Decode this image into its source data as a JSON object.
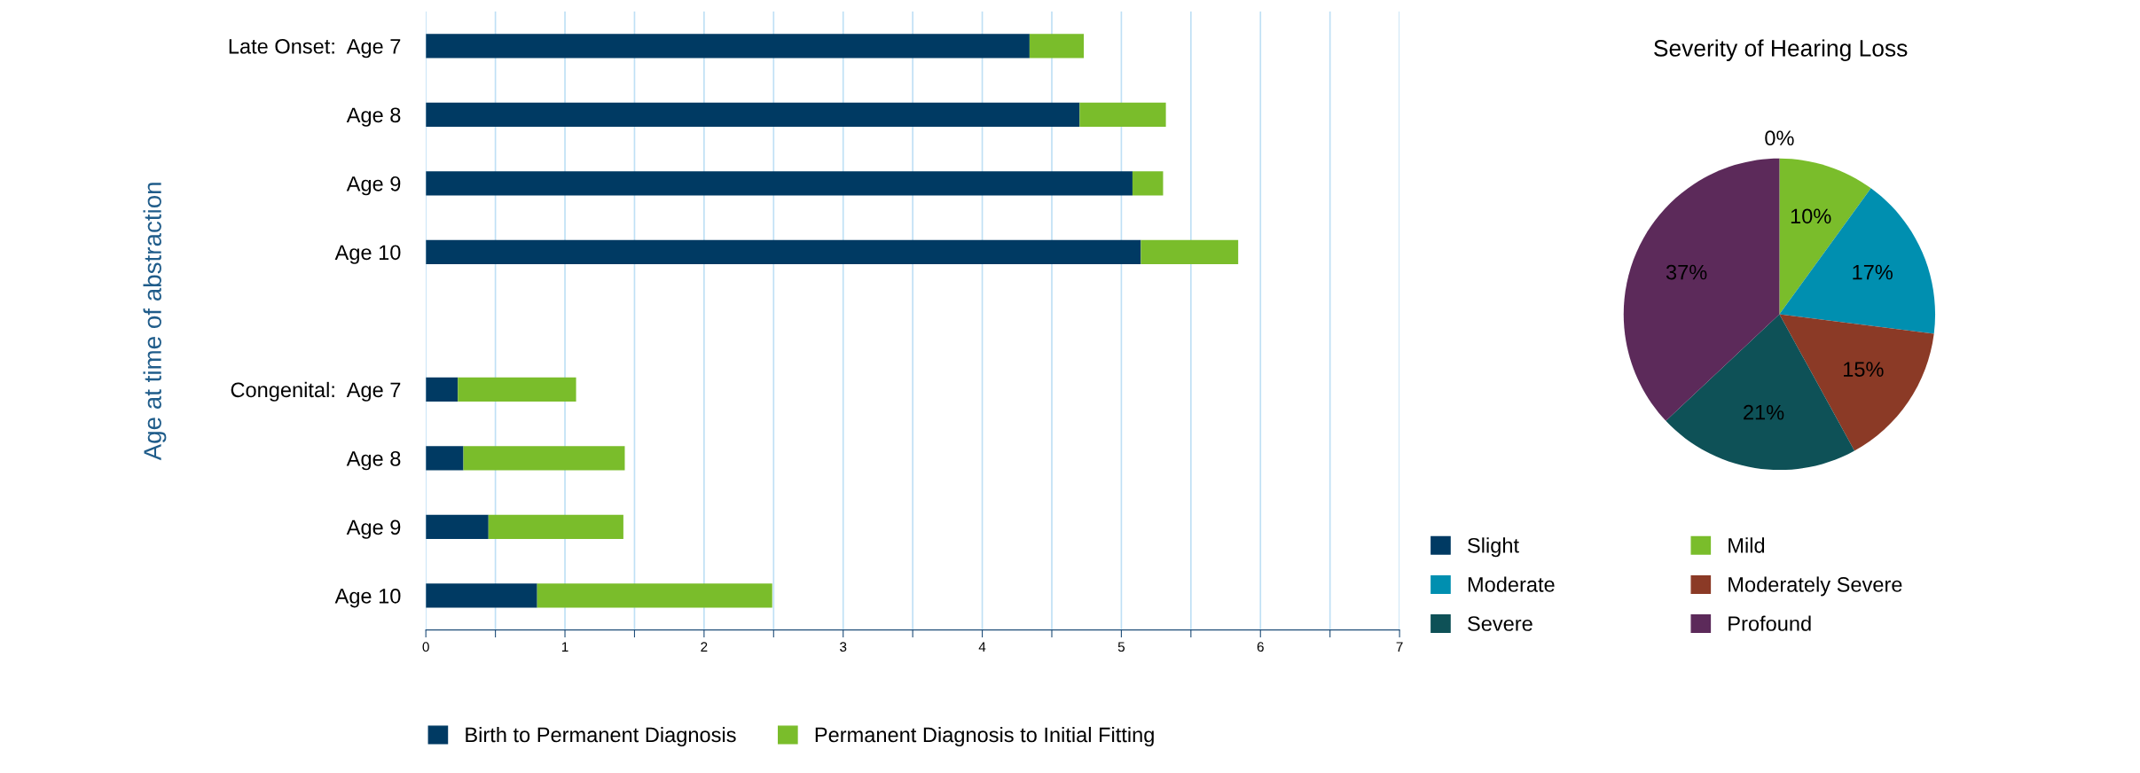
{
  "chart_data": [
    {
      "type": "bar",
      "orientation": "horizontal",
      "stacked": true,
      "ylabel": "Age at time of abstraction",
      "categories": [
        "Late Onset:  Age 7",
        "Age 8",
        "Age 9",
        "Age 10",
        null,
        "Congenital:  Age 7",
        "Age 8",
        "Age 9",
        "Age 10"
      ],
      "series": [
        {
          "name": "Birth to Permanent Diagnosis",
          "color": "#003a63",
          "values": [
            4.34,
            4.7,
            5.08,
            5.14,
            null,
            0.23,
            0.27,
            0.45,
            0.8
          ]
        },
        {
          "name": "Permanent Diagnosis to Initial Fitting",
          "color": "#7abd2b",
          "values": [
            0.39,
            0.62,
            0.22,
            0.7,
            null,
            0.85,
            1.16,
            0.97,
            1.69
          ]
        }
      ],
      "xlim": [
        0,
        7
      ],
      "xticks": [
        0,
        {
          "value": 0.5,
          "label": null
        },
        1,
        {
          "value": 1.5,
          "label": null
        },
        2,
        {
          "value": 2.5,
          "label": null
        },
        3,
        {
          "value": 3.5,
          "label": null
        },
        4,
        {
          "value": 4.5,
          "label": null
        },
        5,
        {
          "value": 5.5,
          "label": null
        },
        6,
        {
          "value": 6.5,
          "label": null
        },
        7
      ],
      "grid": "x",
      "legend": "bottom"
    },
    {
      "type": "pie",
      "title": "Severity of Hearing Loss",
      "categories": [
        "Slight",
        "Mild",
        "Moderate",
        "Moderately Severe",
        "Severe",
        "Profound"
      ],
      "values": [
        0,
        10,
        17,
        15,
        21,
        37
      ],
      "value_labels": [
        "0%",
        "10%",
        "17%",
        "15%",
        "21%",
        "37%"
      ],
      "colors": [
        "#003a63",
        "#7abd2b",
        "#008fb0",
        "#8b3a26",
        "#0e5157",
        "#5c2a5a"
      ],
      "legend": "bottom"
    }
  ]
}
